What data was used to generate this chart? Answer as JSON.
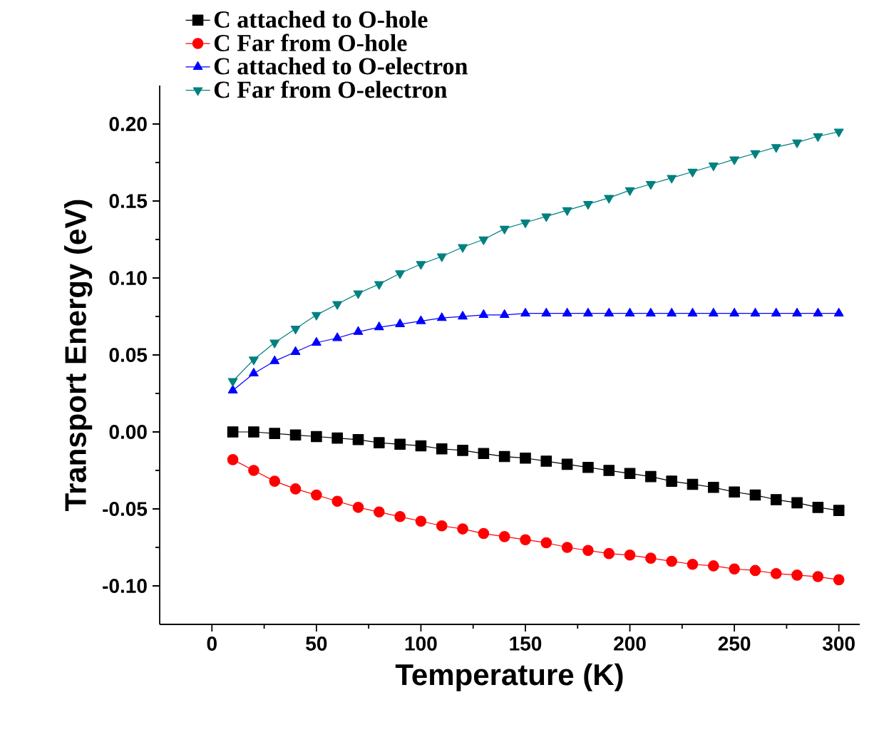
{
  "chart_data": {
    "type": "line",
    "xlabel": "Temperature (K)",
    "ylabel": "Transport Energy (eV)",
    "xlim": [
      -25,
      310
    ],
    "xticks": [
      0,
      50,
      100,
      150,
      200,
      250,
      300
    ],
    "ylim": [
      -0.125,
      0.225
    ],
    "yticks": [
      {
        "value": -0.1,
        "label": "-0.10"
      },
      {
        "value": -0.05,
        "label": "-0.05"
      },
      {
        "value": 0,
        "label": "0.00"
      },
      {
        "value": 0.05,
        "label": "0.05"
      },
      {
        "value": 0.1,
        "label": "0.10"
      },
      {
        "value": 0.15,
        "label": "0.15"
      },
      {
        "value": 0.2,
        "label": "0.20"
      }
    ],
    "legend": "top left",
    "grid": false,
    "x": [
      10,
      20,
      30,
      40,
      50,
      60,
      70,
      80,
      90,
      100,
      110,
      120,
      130,
      140,
      150,
      160,
      170,
      180,
      190,
      200,
      210,
      220,
      230,
      240,
      250,
      260,
      270,
      280,
      290,
      300
    ],
    "series": [
      {
        "name": "C attached to O-hole",
        "color": "#000000",
        "marker": "square",
        "values": [
          0,
          0,
          -0.001,
          -0.002,
          -0.003,
          -0.004,
          -0.005,
          -0.007,
          -0.008,
          -0.009,
          -0.011,
          -0.012,
          -0.014,
          -0.016,
          -0.017,
          -0.019,
          -0.021,
          -0.023,
          -0.025,
          -0.027,
          -0.029,
          -0.032,
          -0.034,
          -0.036,
          -0.039,
          -0.041,
          -0.044,
          -0.046,
          -0.049,
          -0.051
        ]
      },
      {
        "name": "C Far from O-hole",
        "color": "#ff0000",
        "marker": "circle",
        "values": [
          -0.018,
          -0.025,
          -0.032,
          -0.037,
          -0.041,
          -0.045,
          -0.049,
          -0.052,
          -0.055,
          -0.058,
          -0.061,
          -0.063,
          -0.066,
          -0.068,
          -0.07,
          -0.072,
          -0.075,
          -0.077,
          -0.079,
          -0.08,
          -0.082,
          -0.084,
          -0.086,
          -0.087,
          -0.089,
          -0.09,
          -0.092,
          -0.093,
          -0.094,
          -0.096
        ]
      },
      {
        "name": "C attached to O-electron",
        "color": "#0000ff",
        "marker": "triangle",
        "values": [
          0.027,
          0.038,
          0.046,
          0.052,
          0.058,
          0.061,
          0.065,
          0.068,
          0.07,
          0.072,
          0.074,
          0.075,
          0.076,
          0.076,
          0.077,
          0.077,
          0.077,
          0.077,
          0.077,
          0.077,
          0.077,
          0.077,
          0.077,
          0.077,
          0.077,
          0.077,
          0.077,
          0.077,
          0.077,
          0.077
        ]
      },
      {
        "name": "C Far from O-electron",
        "color": "#008080",
        "marker": "triangle down",
        "values": [
          0.033,
          0.047,
          0.058,
          0.067,
          0.076,
          0.083,
          0.09,
          0.096,
          0.103,
          0.109,
          0.114,
          0.12,
          0.125,
          0.132,
          0.136,
          0.14,
          0.144,
          0.148,
          0.152,
          0.157,
          0.161,
          0.165,
          0.169,
          0.173,
          0.177,
          0.181,
          0.185,
          0.188,
          0.192,
          0.195
        ]
      }
    ]
  }
}
